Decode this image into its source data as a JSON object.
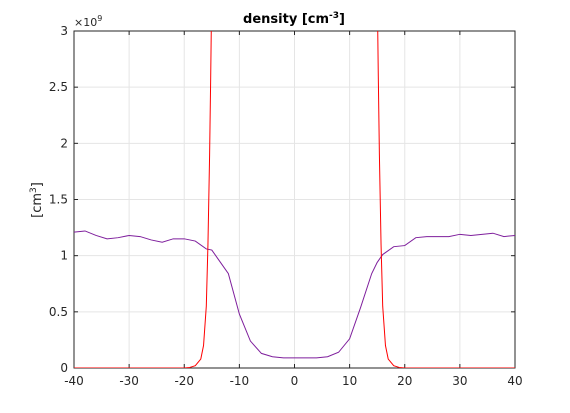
{
  "chart_data": {
    "type": "line",
    "title": "density [cm",
    "title_sup": "-3",
    "title_end": "]",
    "xlabel": "",
    "ylabel": "[cm",
    "ylabel_sup": "3",
    "ylabel_end": "]",
    "y_exponent_label": "×10",
    "y_exponent_sup": "9",
    "xlim": [
      -40,
      40
    ],
    "ylim": [
      0,
      3
    ],
    "x_ticks": [
      -40,
      -30,
      -20,
      -10,
      0,
      10,
      20,
      30,
      40
    ],
    "x_tick_labels": [
      "-40",
      "-30",
      "-20",
      "-10",
      "0",
      "10",
      "20",
      "30",
      "40"
    ],
    "y_ticks": [
      0,
      0.5,
      1,
      1.5,
      2,
      2.5,
      3
    ],
    "y_tick_labels": [
      "0",
      "0.5",
      "1",
      "1.5",
      "2",
      "2.5",
      "3"
    ],
    "grid": true,
    "series": [
      {
        "color": "#7e1e9c",
        "x": [
          -40,
          -38,
          -36,
          -34,
          -32,
          -30,
          -28,
          -26,
          -24,
          -22,
          -20,
          -18,
          -16,
          -15,
          -14,
          -12,
          -10,
          -8,
          -6,
          -4,
          -2,
          0,
          2,
          4,
          6,
          8,
          10,
          12,
          14,
          15,
          16,
          18,
          20,
          22,
          24,
          26,
          28,
          30,
          32,
          34,
          36,
          38,
          40
        ],
        "y": [
          1.21,
          1.22,
          1.18,
          1.15,
          1.16,
          1.18,
          1.17,
          1.14,
          1.12,
          1.15,
          1.15,
          1.13,
          1.06,
          1.05,
          0.98,
          0.84,
          0.48,
          0.24,
          0.13,
          0.1,
          0.09,
          0.09,
          0.09,
          0.09,
          0.1,
          0.14,
          0.26,
          0.54,
          0.84,
          0.94,
          1.01,
          1.08,
          1.09,
          1.16,
          1.17,
          1.17,
          1.17,
          1.19,
          1.18,
          1.19,
          1.2,
          1.17,
          1.18
        ]
      },
      {
        "color": "#ff0000",
        "x": [
          -40,
          -24,
          -20,
          -19,
          -18,
          -17,
          -16.5,
          -16,
          -15.7,
          -15.4,
          -15.2,
          -15.1
        ],
        "y": [
          0,
          0,
          0,
          0.005,
          0.02,
          0.08,
          0.2,
          0.55,
          1.1,
          1.9,
          2.6,
          3
        ],
        "x2": [
          15.1,
          15.2,
          15.4,
          15.7,
          16,
          16.5,
          17,
          18,
          19,
          20,
          24,
          40
        ],
        "y2": [
          3,
          2.6,
          1.9,
          1.1,
          0.55,
          0.2,
          0.08,
          0.02,
          0.005,
          0,
          0,
          0
        ]
      }
    ]
  }
}
